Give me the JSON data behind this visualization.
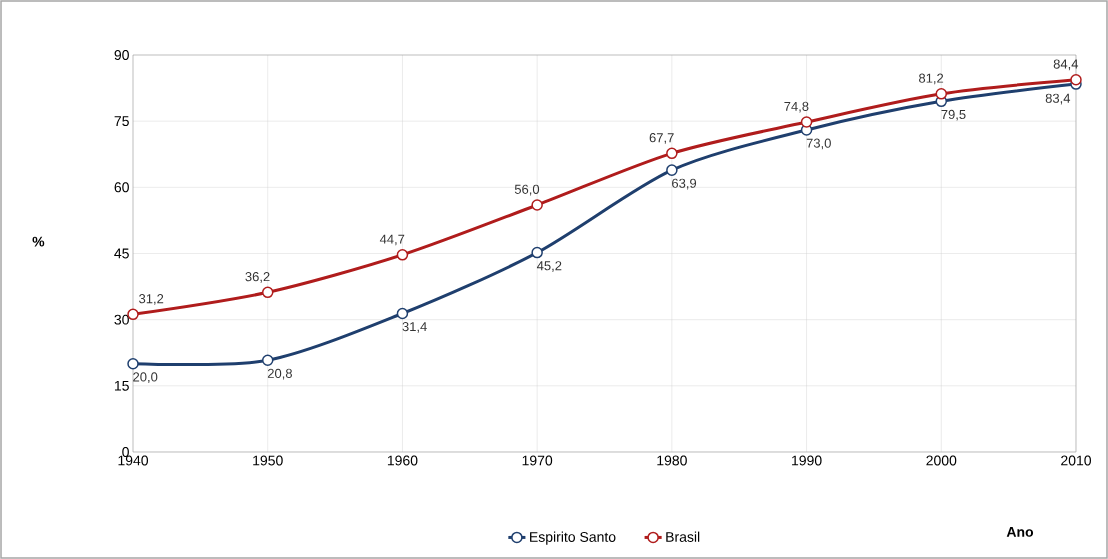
{
  "chart_data": {
    "type": "line",
    "xlabel": "Ano",
    "ylabel": "%",
    "x": [
      1940,
      1950,
      1960,
      1970,
      1980,
      1990,
      2000,
      2010
    ],
    "series": [
      {
        "name": "Espirito Santo",
        "color": "#1f3f6e",
        "values": [
          20.0,
          20.8,
          31.4,
          45.2,
          63.9,
          73.0,
          79.5,
          83.4
        ],
        "value_labels": [
          "20,0",
          "20,8",
          "31,4",
          "45,2",
          "63,9",
          "73,0",
          "79,5",
          "83,4"
        ]
      },
      {
        "name": "Brasil",
        "color": "#b01c1c",
        "values": [
          31.2,
          36.2,
          44.7,
          56.0,
          67.7,
          74.8,
          81.2,
          84.4
        ],
        "value_labels": [
          "31,2",
          "36,2",
          "44,7",
          "56,0",
          "67,7",
          "74,8",
          "81,2",
          "84,4"
        ]
      }
    ],
    "xlim": [
      1940,
      2010
    ],
    "ylim": [
      0,
      90
    ],
    "xticks": [
      1940,
      1950,
      1960,
      1970,
      1980,
      1990,
      2000,
      2010
    ],
    "yticks": [
      0,
      15,
      30,
      45,
      60,
      75,
      90
    ],
    "grid": true,
    "legend": "bottom",
    "marker": "circle",
    "line_style": "solid"
  }
}
